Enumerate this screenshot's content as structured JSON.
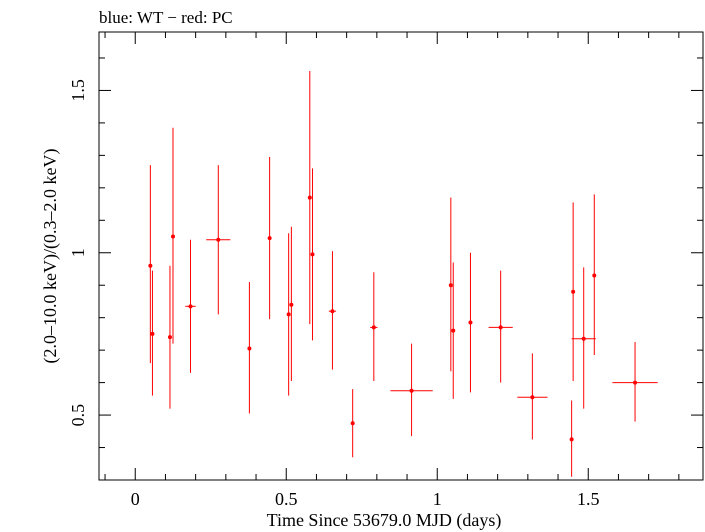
{
  "chart_data": {
    "type": "scatter",
    "title": "blue: WT − red: PC",
    "xlabel": "Time Since 53679.0 MJD (days)",
    "ylabel": "(2.0–10.0 keV)/(0.3–2.0 keV)",
    "xlim": [
      -0.12,
      1.88
    ],
    "ylim": [
      0.3,
      1.68
    ],
    "x_ticks": [
      {
        "value": 0,
        "label": "0"
      },
      {
        "value": 0.5,
        "label": "0.5"
      },
      {
        "value": 1,
        "label": "1"
      },
      {
        "value": 1.5,
        "label": "1.5"
      }
    ],
    "y_ticks": [
      {
        "value": 0.5,
        "label": "0.5"
      },
      {
        "value": 1,
        "label": "1"
      },
      {
        "value": 1.5,
        "label": "1.5"
      }
    ],
    "grid": false,
    "series": [
      {
        "name": "PC",
        "color": "#ff0000",
        "points": [
          {
            "x": 0.05,
            "xerr": 0.004,
            "y": 0.96,
            "ylo": 0.66,
            "yhi": 1.27
          },
          {
            "x": 0.057,
            "xerr": 0.004,
            "y": 0.75,
            "ylo": 0.56,
            "yhi": 0.945
          },
          {
            "x": 0.115,
            "xerr": 0.004,
            "y": 0.74,
            "ylo": 0.52,
            "yhi": 0.96
          },
          {
            "x": 0.125,
            "xerr": 0.004,
            "y": 1.05,
            "ylo": 0.72,
            "yhi": 1.385
          },
          {
            "x": 0.183,
            "xerr": 0.017,
            "y": 0.835,
            "ylo": 0.63,
            "yhi": 1.04
          },
          {
            "x": 0.275,
            "xerr": 0.04,
            "y": 1.04,
            "ylo": 0.81,
            "yhi": 1.27
          },
          {
            "x": 0.378,
            "xerr": 0.004,
            "y": 0.705,
            "ylo": 0.505,
            "yhi": 0.91
          },
          {
            "x": 0.445,
            "xerr": 0.004,
            "y": 1.045,
            "ylo": 0.795,
            "yhi": 1.295
          },
          {
            "x": 0.508,
            "xerr": 0.004,
            "y": 0.81,
            "ylo": 0.56,
            "yhi": 1.06
          },
          {
            "x": 0.517,
            "xerr": 0.004,
            "y": 0.84,
            "ylo": 0.605,
            "yhi": 1.08
          },
          {
            "x": 0.578,
            "xerr": 0.004,
            "y": 1.17,
            "ylo": 0.78,
            "yhi": 1.56
          },
          {
            "x": 0.587,
            "xerr": 0.004,
            "y": 0.995,
            "ylo": 0.73,
            "yhi": 1.26
          },
          {
            "x": 0.653,
            "xerr": 0.012,
            "y": 0.82,
            "ylo": 0.64,
            "yhi": 1.005
          },
          {
            "x": 0.72,
            "xerr": 0.004,
            "y": 0.475,
            "ylo": 0.37,
            "yhi": 0.58
          },
          {
            "x": 0.79,
            "xerr": 0.012,
            "y": 0.77,
            "ylo": 0.605,
            "yhi": 0.94
          },
          {
            "x": 0.915,
            "xerr": 0.07,
            "y": 0.575,
            "ylo": 0.435,
            "yhi": 0.72
          },
          {
            "x": 1.045,
            "xerr": 0.004,
            "y": 0.9,
            "ylo": 0.635,
            "yhi": 1.17
          },
          {
            "x": 1.053,
            "xerr": 0.004,
            "y": 0.76,
            "ylo": 0.55,
            "yhi": 0.97
          },
          {
            "x": 1.11,
            "xerr": 0.006,
            "y": 0.785,
            "ylo": 0.57,
            "yhi": 1.0
          },
          {
            "x": 1.21,
            "xerr": 0.04,
            "y": 0.77,
            "ylo": 0.6,
            "yhi": 0.945
          },
          {
            "x": 1.315,
            "xerr": 0.05,
            "y": 0.555,
            "ylo": 0.425,
            "yhi": 0.69
          },
          {
            "x": 1.445,
            "xerr": 0.004,
            "y": 0.425,
            "ylo": 0.31,
            "yhi": 0.545
          },
          {
            "x": 1.45,
            "xerr": 0.004,
            "y": 0.88,
            "ylo": 0.605,
            "yhi": 1.155
          },
          {
            "x": 1.485,
            "xerr": 0.04,
            "y": 0.735,
            "ylo": 0.52,
            "yhi": 0.955
          },
          {
            "x": 1.52,
            "xerr": 0.004,
            "y": 0.93,
            "ylo": 0.685,
            "yhi": 1.18
          },
          {
            "x": 1.655,
            "xerr": 0.075,
            "y": 0.6,
            "ylo": 0.48,
            "yhi": 0.725
          }
        ]
      }
    ]
  }
}
